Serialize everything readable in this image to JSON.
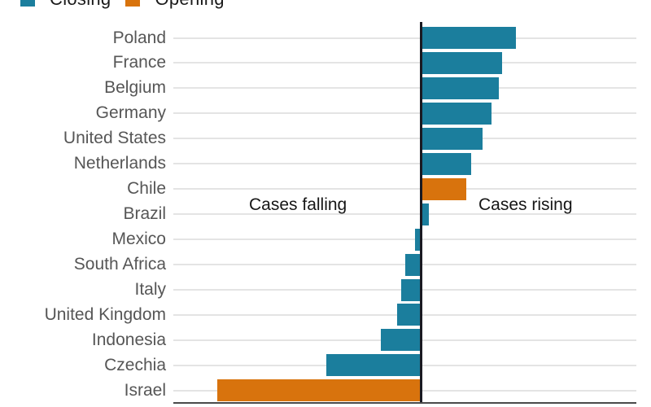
{
  "legend": {
    "items": [
      {
        "label": "Closing",
        "color": "#1B7E9D"
      },
      {
        "label": "Opening",
        "color": "#D8730D"
      }
    ]
  },
  "annotations": {
    "falling": "Cases falling",
    "rising": "Cases rising"
  },
  "chart_data": {
    "type": "bar",
    "subtype": "horizontal-diverging",
    "title": "",
    "xlabel": "",
    "ylabel": "",
    "value_unit": "relative px from center axis (no numeric axis labels shown)",
    "axis_annotations": {
      "left_side": "Cases falling",
      "right_side": "Cases rising"
    },
    "legend_position": "top-left",
    "grid": "one light horizontal gridline per category row",
    "colors": {
      "Closing": "#1B7E9D",
      "Opening": "#D8730D"
    },
    "categories": [
      "Poland",
      "France",
      "Belgium",
      "Germany",
      "United States",
      "Netherlands",
      "Chile",
      "Brazil",
      "Mexico",
      "South Africa",
      "Italy",
      "United Kingdom",
      "Indonesia",
      "Czechia",
      "Israel"
    ],
    "rows": [
      {
        "label": "Poland",
        "value": 116,
        "direction": "rising",
        "status": "Closing"
      },
      {
        "label": "France",
        "value": 99,
        "direction": "rising",
        "status": "Closing"
      },
      {
        "label": "Belgium",
        "value": 95,
        "direction": "rising",
        "status": "Closing"
      },
      {
        "label": "Germany",
        "value": 86,
        "direction": "rising",
        "status": "Closing"
      },
      {
        "label": "United States",
        "value": 75,
        "direction": "rising",
        "status": "Closing"
      },
      {
        "label": "Netherlands",
        "value": 61,
        "direction": "rising",
        "status": "Closing"
      },
      {
        "label": "Chile",
        "value": 55,
        "direction": "rising",
        "status": "Opening"
      },
      {
        "label": "Brazil",
        "value": 9,
        "direction": "rising",
        "status": "Closing"
      },
      {
        "label": "Mexico",
        "value": -8,
        "direction": "falling",
        "status": "Closing"
      },
      {
        "label": "South Africa",
        "value": -20,
        "direction": "falling",
        "status": "Closing"
      },
      {
        "label": "Italy",
        "value": -25,
        "direction": "falling",
        "status": "Closing"
      },
      {
        "label": "United Kingdom",
        "value": -30,
        "direction": "falling",
        "status": "Closing"
      },
      {
        "label": "Indonesia",
        "value": -50,
        "direction": "falling",
        "status": "Closing"
      },
      {
        "label": "Czechia",
        "value": -117,
        "direction": "falling",
        "status": "Closing"
      },
      {
        "label": "Israel",
        "value": -251,
        "direction": "falling",
        "status": "Opening"
      }
    ]
  }
}
